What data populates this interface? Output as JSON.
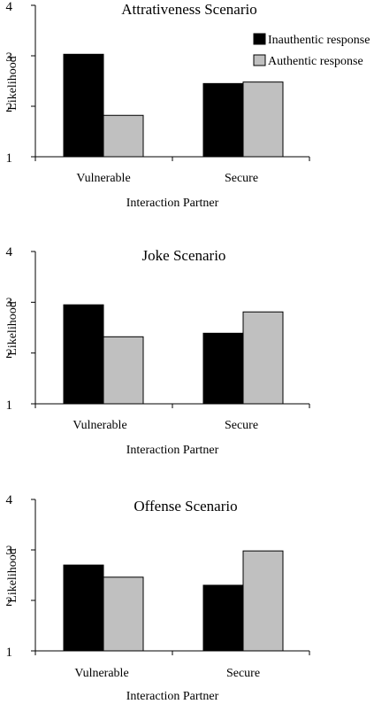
{
  "chart_data": [
    {
      "type": "bar",
      "title": "Attrativeness Scenario",
      "xlabel": "Interaction Partner",
      "ylabel": "Likelihood",
      "ylim": [
        1,
        4
      ],
      "yticks": [
        "1",
        "2",
        "3",
        "4"
      ],
      "categories": [
        "Vulnerable",
        "Secure"
      ],
      "series": [
        {
          "name": "Inauthentic response",
          "values": [
            3.03,
            2.45
          ]
        },
        {
          "name": "Authentic response",
          "values": [
            1.82,
            2.48
          ]
        }
      ],
      "legend": "top-right",
      "grid": false
    },
    {
      "type": "bar",
      "title": "Joke Scenario",
      "xlabel": "Interaction Partner",
      "ylabel": "Likelihood",
      "ylim": [
        1,
        4
      ],
      "yticks": [
        "1",
        "2",
        "3",
        "4"
      ],
      "categories": [
        "Vulnerable",
        "Secure"
      ],
      "series": [
        {
          "name": "Inauthentic response",
          "values": [
            2.95,
            2.39
          ]
        },
        {
          "name": "Authentic response",
          "values": [
            2.32,
            2.81
          ]
        }
      ],
      "grid": false
    },
    {
      "type": "bar",
      "title": "Offense Scenario",
      "xlabel": "Interaction Partner",
      "ylabel": "Likelihood",
      "ylim": [
        1,
        4
      ],
      "yticks": [
        "1",
        "2",
        "3",
        "4"
      ],
      "categories": [
        "Vulnerable",
        "Secure"
      ],
      "series": [
        {
          "name": "Inauthentic response",
          "values": [
            2.7,
            2.3
          ]
        },
        {
          "name": "Authentic response",
          "values": [
            2.46,
            2.98
          ]
        }
      ],
      "grid": false
    }
  ],
  "colors": {
    "inauthentic": "#000000",
    "authentic": "#c0c0c0",
    "axis": "#000000"
  }
}
